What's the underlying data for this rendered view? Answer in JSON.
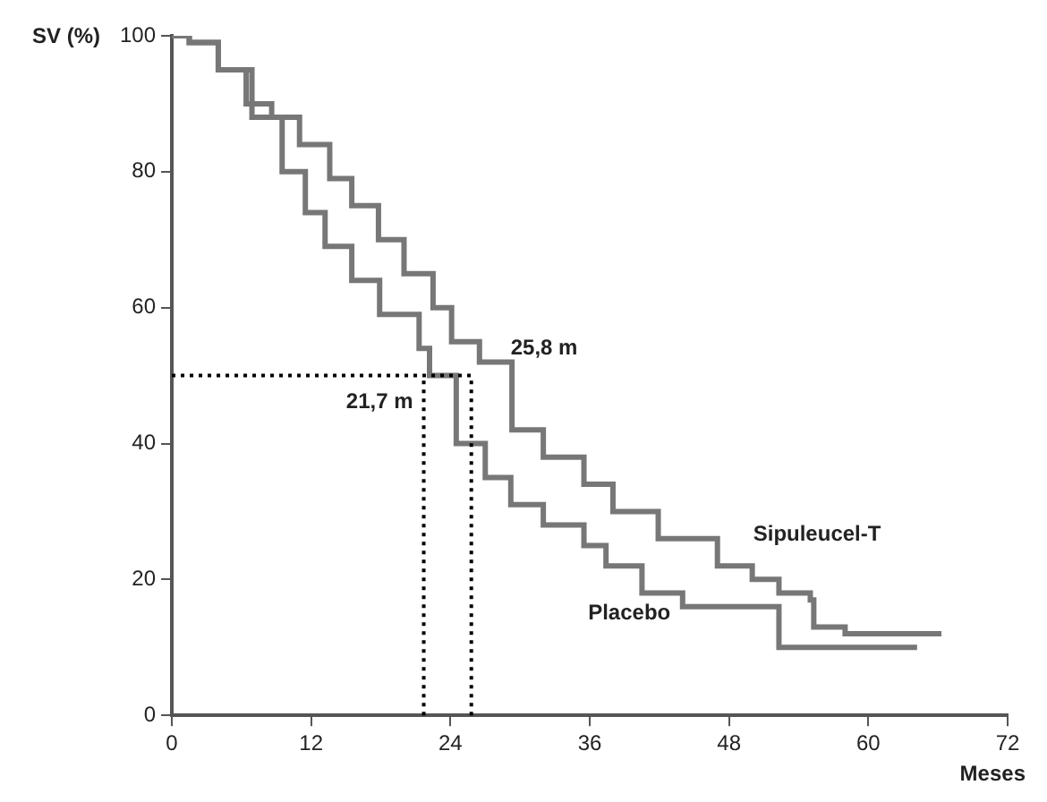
{
  "chart_data": {
    "type": "step",
    "xlabel": "Meses",
    "ylabel": "SV (%)",
    "xlim": [
      0,
      72
    ],
    "xticks": [
      0,
      12,
      24,
      36,
      48,
      60,
      72
    ],
    "ylim": [
      0,
      100
    ],
    "yticks": [
      0,
      20,
      40,
      60,
      80,
      100
    ],
    "grid": false,
    "legend": false,
    "marker": "none",
    "series": [
      {
        "name": "Sipuleucel-T",
        "color": "#777777",
        "x": [
          0,
          1.5,
          4,
          6.4,
          8.6,
          11,
          13.6,
          15.5,
          17.8,
          20,
          22.5,
          24.1,
          26.5,
          29.3,
          32,
          35.5,
          38,
          41.9,
          45.5,
          47,
          50,
          52.3,
          55,
          55.3,
          58,
          66.3
        ],
        "values": [
          100,
          99,
          95,
          90,
          88,
          84,
          79,
          75,
          70,
          65,
          60,
          55,
          52,
          42,
          38,
          34,
          30,
          26,
          26,
          22,
          20,
          18,
          17,
          13,
          12,
          12
        ]
      },
      {
        "name": "Placebo",
        "color": "#777777",
        "x": [
          0,
          1.5,
          4,
          6.9,
          9.5,
          11.5,
          13.2,
          15.5,
          17.9,
          21.3,
          22.2,
          24.5,
          27,
          29.2,
          32,
          35.5,
          37.4,
          40.5,
          44,
          52.3,
          58,
          64.2
        ],
        "values": [
          100,
          99,
          95,
          88,
          80,
          74,
          69,
          64,
          59,
          54,
          50,
          40,
          35,
          31,
          28,
          25,
          22,
          18,
          16,
          10,
          10,
          10
        ]
      }
    ],
    "ref_lines": [
      {
        "axis": "y",
        "value": 50,
        "label": null,
        "line_style": "dotted",
        "color": "#000000"
      },
      {
        "axis": "x",
        "value": 21.7,
        "label": "21,7 m",
        "line_style": "dotted",
        "color": "#000000"
      },
      {
        "axis": "x",
        "value": 25.8,
        "label": "25,8 m",
        "line_style": "dotted",
        "color": "#000000"
      }
    ]
  }
}
